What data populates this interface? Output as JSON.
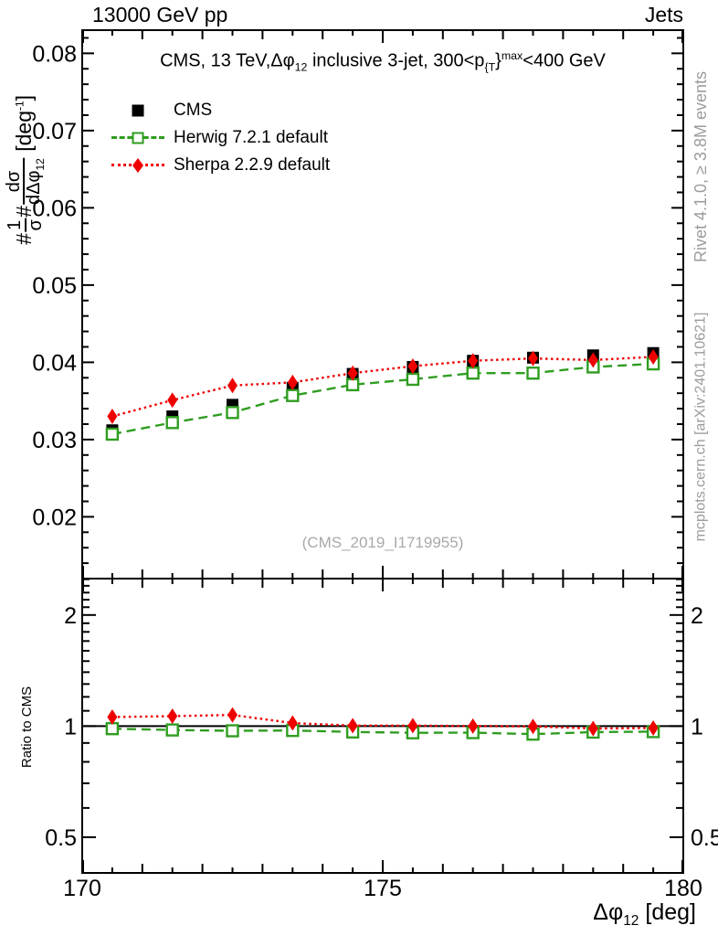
{
  "colors": {
    "cms": "#000000",
    "herwig": "#2f9d20",
    "sherpa": "#ee0000",
    "gray": "#9c9c9c",
    "frame": "#000000"
  },
  "header": {
    "left": "13000 GeV pp",
    "right": "Jets"
  },
  "plot_title_segments": [
    {
      "t": "CMS, 13 TeV,"
    },
    {
      "t": "Δφ"
    },
    {
      "t": "12",
      "style": "sub"
    },
    {
      "t": " inclusive 3-jet, 300<p"
    },
    {
      "t": "{T",
      "style": "sub"
    },
    {
      "t": "}"
    },
    {
      "t": "max",
      "style": "sup"
    },
    {
      "t": "<400 GeV"
    }
  ],
  "legend": {
    "items": [
      {
        "label": "CMS",
        "color_key": "cms",
        "marker": "filled-square",
        "line": "none"
      },
      {
        "label": "Herwig 7.2.1 default",
        "color_key": "herwig",
        "marker": "open-square",
        "line": "dashed"
      },
      {
        "label": "Sherpa 2.2.9 default",
        "color_key": "sherpa",
        "marker": "filled-diamond",
        "line": "dotted"
      }
    ]
  },
  "side_notes": {
    "top_right": "Rivet 4.1.0, ≥ 3.8M events",
    "bottom_right": "mcplots.cern.ch [arXiv:2401.10621]",
    "watermark": "(CMS_2019_I1719955)"
  },
  "axis_titles": {
    "y_main_segments": [
      {
        "t": "#"
      },
      {
        "frac": {
          "num": "1",
          "den": "σ"
        }
      },
      {
        "t": "#"
      },
      {
        "frac": {
          "num": "dσ",
          "den": "dΔφ",
          "densub": "12"
        }
      },
      {
        "t": " [deg"
      },
      {
        "t": "-1",
        "style": "sup"
      },
      {
        "t": "]"
      }
    ],
    "y_ratio": "Ratio to CMS",
    "x_segments": [
      {
        "t": "Δφ"
      },
      {
        "t": "12",
        "style": "sub"
      },
      {
        "t": " [deg]"
      }
    ]
  },
  "chart_data": {
    "type": "line",
    "title": "CMS, 13 TeV, Δφ12 inclusive 3-jet, 300<p{T}max<400 GeV",
    "xlabel": "Δφ12 [deg]",
    "ylabel": "#(1/σ)# dσ/dΔφ12 [deg-1]",
    "xlim": [
      170,
      180
    ],
    "x": [
      170.5,
      171.5,
      172.5,
      173.5,
      174.5,
      175.5,
      176.5,
      177.5,
      178.5,
      179.5
    ],
    "xticks": {
      "labeled": [
        {
          "v": 170,
          "label": "170"
        },
        {
          "v": 175,
          "label": "175"
        },
        {
          "v": 180,
          "label": "180"
        }
      ],
      "integer_step": 1,
      "half_step": 0.5
    },
    "legend_position": "top-left",
    "grid": false,
    "panels": [
      {
        "id": "main",
        "yscale": "linear",
        "ylim": [
          0.012,
          0.083
        ],
        "yticks": {
          "majors": [
            {
              "v": 0.02,
              "label": "0.02"
            },
            {
              "v": 0.03,
              "label": "0.03"
            },
            {
              "v": 0.04,
              "label": "0.04"
            },
            {
              "v": 0.05,
              "label": "0.05"
            },
            {
              "v": 0.06,
              "label": "0.06"
            },
            {
              "v": 0.07,
              "label": "0.07"
            },
            {
              "v": 0.08,
              "label": "0.08"
            }
          ],
          "minor_step": 0.002
        },
        "label_sides": [
          "left"
        ],
        "series": [
          {
            "id": "cms",
            "name": "CMS",
            "color_key": "cms",
            "marker": "filled-square",
            "linestyle": "none",
            "yerr": 0.0005,
            "values": [
              0.0312,
              0.033,
              0.0345,
              0.0367,
              0.0385,
              0.0394,
              0.0402,
              0.0406,
              0.0409,
              0.0412
            ]
          },
          {
            "id": "herwig",
            "name": "Herwig 7.2.1 default",
            "color_key": "herwig",
            "marker": "open-square",
            "linestyle": "dashed",
            "yerr": 0.0003,
            "values": [
              0.0307,
              0.0322,
              0.0335,
              0.0357,
              0.0371,
              0.0378,
              0.0386,
              0.0386,
              0.0394,
              0.0398
            ]
          },
          {
            "id": "sherpa",
            "name": "Sherpa 2.2.9 default",
            "color_key": "sherpa",
            "marker": "filled-diamond",
            "linestyle": "dotted",
            "yerr": 0.0003,
            "values": [
              0.033,
              0.0351,
              0.037,
              0.0374,
              0.0386,
              0.0395,
              0.0402,
              0.0405,
              0.0403,
              0.0407
            ]
          }
        ]
      },
      {
        "id": "ratio",
        "yscale": "log",
        "ylim": [
          0.4,
          2.51
        ],
        "refline": 1.0,
        "yticks": {
          "majors": [
            {
              "v": 0.5,
              "label": "0.5"
            },
            {
              "v": 1,
              "label": "1"
            },
            {
              "v": 2,
              "label": "2"
            }
          ],
          "minors": [
            0.4,
            0.6,
            0.7,
            0.8,
            0.9,
            1.1,
            1.2,
            1.3,
            1.4,
            1.5,
            1.6,
            1.7,
            1.8,
            1.9,
            2.1,
            2.2,
            2.3,
            2.4,
            2.5
          ]
        },
        "label_sides": [
          "left",
          "right"
        ],
        "series": [
          {
            "id": "herwig-ratio",
            "name": "Herwig 7.2.1 default",
            "color_key": "herwig",
            "marker": "open-square",
            "linestyle": "dashed",
            "yerr": 0.008,
            "values": [
              0.984,
              0.976,
              0.971,
              0.973,
              0.964,
              0.959,
              0.96,
              0.951,
              0.963,
              0.966
            ]
          },
          {
            "id": "sherpa-ratio",
            "name": "Sherpa 2.2.9 default",
            "color_key": "sherpa",
            "marker": "filled-diamond",
            "linestyle": "dotted",
            "yerr": 0.015,
            "values": [
              1.058,
              1.064,
              1.072,
              1.019,
              1.003,
              1.003,
              1.0,
              0.998,
              0.985,
              0.988
            ]
          }
        ]
      }
    ]
  }
}
